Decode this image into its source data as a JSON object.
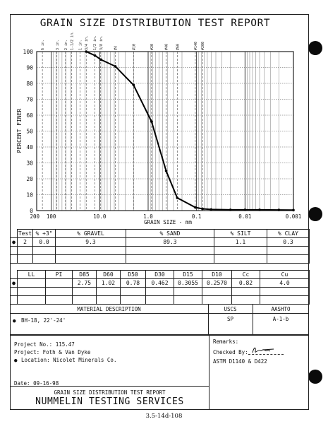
{
  "title": "GRAIN SIZE DISTRIBUTION TEST REPORT",
  "chart_data": {
    "type": "line",
    "xscale": "log",
    "xlim": [
      200,
      0.001
    ],
    "ylim": [
      0,
      100
    ],
    "xlabel": "GRAIN SIZE - mm",
    "ylabel": "PERCENT FINER",
    "x_tick_labels": [
      "200",
      "100",
      "10.0",
      "1.0",
      "0.1",
      "0.01",
      "0.001"
    ],
    "y_tick_labels": [
      "0",
      "10",
      "20",
      "30",
      "40",
      "50",
      "60",
      "70",
      "80",
      "90",
      "100"
    ],
    "sieve_labels": [
      "6 in.",
      "3 in.",
      "2 in.",
      "1-1/2 in.",
      "1 in.",
      "3/4 in.",
      "1/2 in.",
      "3/8 in.",
      "#4",
      "#10",
      "#20",
      "#40",
      "#60",
      "#140",
      "#200"
    ],
    "series": [
      {
        "x": [
          19.0,
          12.5,
          9.5,
          4.75,
          2.0,
          0.85,
          0.425,
          0.25,
          0.106,
          0.075,
          0.05,
          0.02,
          0.01,
          0.005,
          0.002,
          0.001
        ],
        "y": [
          100,
          97.5,
          95,
          90.7,
          79,
          56,
          25,
          8,
          2,
          1.1,
          0.7,
          0.5,
          0.5,
          0.5,
          0.4,
          0.3
        ]
      }
    ]
  },
  "table1": {
    "headers": [
      "Test",
      "% +3\"",
      "% GRAVEL",
      "% SAND",
      "% SILT",
      "% CLAY"
    ],
    "row": [
      "2",
      "0.0",
      "9.3",
      "89.3",
      "1.1",
      "0.3"
    ]
  },
  "table2": {
    "headers": [
      "LL",
      "PI",
      "D85",
      "D60",
      "D50",
      "D30",
      "D15",
      "D10",
      "Cc",
      "Cu"
    ],
    "row": [
      "",
      "",
      "2.75",
      "1.02",
      "0.78",
      "0.462",
      "0.3055",
      "0.2570",
      "0.82",
      "4.0"
    ]
  },
  "material": {
    "header": "MATERIAL DESCRIPTION",
    "uscs_header": "USCS",
    "aashto_header": "AASHTO",
    "description": "BH-18, 22'-24'",
    "uscs": "SP",
    "aashto": "A-1-b"
  },
  "project": {
    "number": "Project No.: 115.47",
    "name": "Project: Foth & Van Dyke",
    "location": "Location: Nicolet Minerals Co.",
    "date": "Date: 09-16-98"
  },
  "remarks": {
    "label": "Remarks:",
    "checked_by": "Checked By:",
    "signature": "Bn",
    "astm": "ASTM D1140 & D422"
  },
  "footer": {
    "report_title": "GRAIN SIZE DISTRIBUTION TEST REPORT",
    "company": "NUMMELIN TESTING SERVICES",
    "page_ref": "3.5-14d-108"
  }
}
